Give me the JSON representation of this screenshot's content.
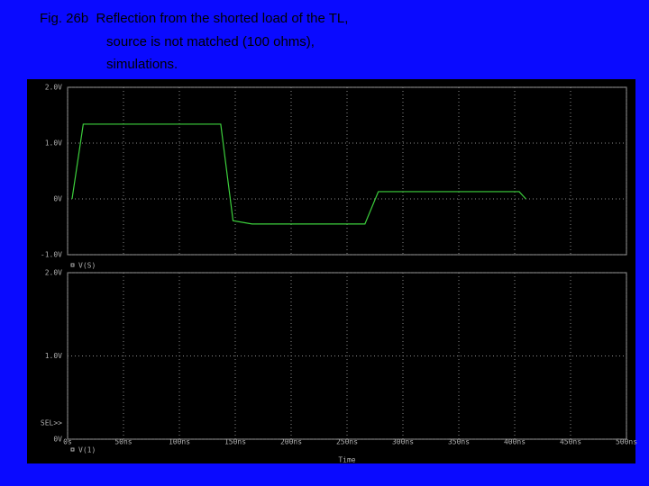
{
  "caption": [
    "Fig. 26b  Reflection from the shorted load of the TL,",
    "source is not matched (100 ohms),",
    "simulations."
  ],
  "chart_data": [
    {
      "type": "line",
      "x": [
        4,
        14,
        137,
        148,
        165,
        266,
        278,
        404,
        410
      ],
      "series": [
        {
          "name": "V(S)",
          "color": "#3ccf3c",
          "values": [
            0,
            1.34,
            1.34,
            -0.39,
            -0.45,
            -0.45,
            0.13,
            0.13,
            0.0
          ]
        }
      ],
      "xlim": [
        0,
        500
      ],
      "ylim": [
        -1.0,
        2.0
      ],
      "yticks": [
        {
          "value": -1.0,
          "label": "-1.0V"
        },
        {
          "value": 0,
          "label": "0V"
        },
        {
          "value": 1.0,
          "label": "1.0V"
        },
        {
          "value": 2.0,
          "label": "2.0V"
        }
      ],
      "grid": true
    },
    {
      "type": "line",
      "x": [],
      "series": [
        {
          "name": "V(1)",
          "color": "#3ccf3c",
          "values": []
        }
      ],
      "xlabel": "Time",
      "marker_label": "SEL>>",
      "xlim": [
        0,
        500
      ],
      "xticks": [
        {
          "value": 0,
          "label": "0s"
        },
        {
          "value": 50,
          "label": "50ns"
        },
        {
          "value": 100,
          "label": "100ns"
        },
        {
          "value": 150,
          "label": "150ns"
        },
        {
          "value": 200,
          "label": "200ns"
        },
        {
          "value": 250,
          "label": "250ns"
        },
        {
          "value": 300,
          "label": "300ns"
        },
        {
          "value": 350,
          "label": "350ns"
        },
        {
          "value": 400,
          "label": "400ns"
        },
        {
          "value": 450,
          "label": "450ns"
        },
        {
          "value": 500,
          "label": "500ns"
        }
      ],
      "ylim": [
        0,
        2.0
      ],
      "yticks": [
        {
          "value": 0,
          "label": "0V"
        },
        {
          "value": 1.0,
          "label": "1.0V"
        },
        {
          "value": 2.0,
          "label": "2.0V"
        }
      ],
      "grid": true
    }
  ]
}
